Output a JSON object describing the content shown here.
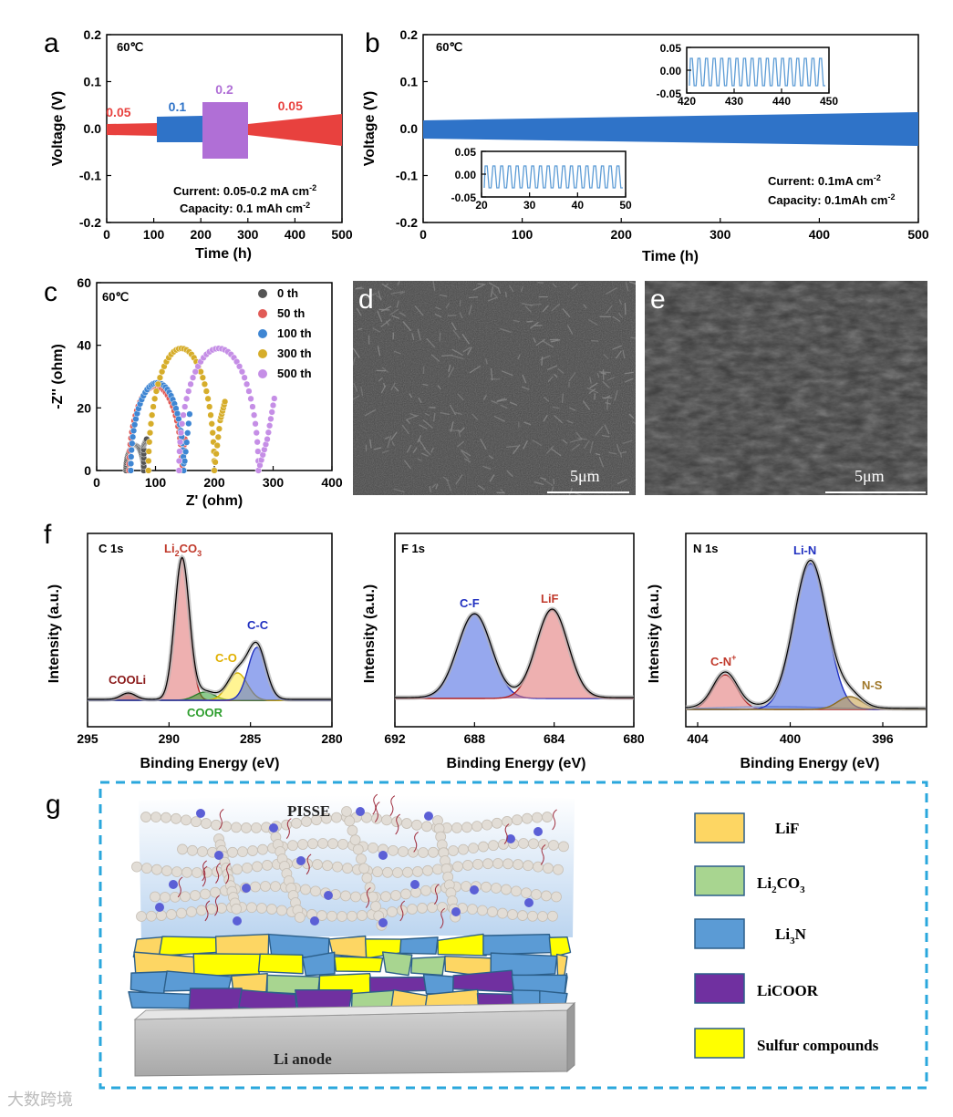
{
  "panels": {
    "a": {
      "letter": "a",
      "temp": "60℃",
      "ylabel": "Voltage (V)",
      "xlabel": "Time (h)",
      "xticks": [
        "0",
        "100",
        "200",
        "300",
        "400",
        "500"
      ],
      "yticks": [
        "0.2",
        "0.1",
        "0.0",
        "-0.1",
        "-0.2"
      ],
      "rate_labels": [
        {
          "text": "0.05",
          "color": "#e8413e",
          "t": 25
        },
        {
          "text": "0.1",
          "color": "#2f73c8",
          "t": 150
        },
        {
          "text": "0.2",
          "color": "#b06fd6",
          "t": 250
        },
        {
          "text": "0.05",
          "color": "#e8413e",
          "t": 390
        }
      ],
      "current": "Current: 0.05-0.2 mA cm",
      "current_sup": "-2",
      "capacity": "Capacity: 0.1 mAh cm",
      "capacity_sup": "-2"
    },
    "b": {
      "letter": "b",
      "temp": "60℃",
      "ylabel": "Voltage (V)",
      "xlabel": "Time (h)",
      "xticks": [
        "0",
        "100",
        "200",
        "300",
        "400",
        "500"
      ],
      "yticks": [
        "0.2",
        "0.1",
        "0.0",
        "-0.1",
        "-0.2"
      ],
      "inset1": {
        "xticks": [
          "420",
          "430",
          "440",
          "450"
        ],
        "yticks": [
          "0.05",
          "0.00",
          "-0.05"
        ]
      },
      "inset2": {
        "xticks": [
          "20",
          "30",
          "40",
          "50"
        ],
        "yticks": [
          "0.05",
          "0.00",
          "-0.05"
        ]
      },
      "current": "Current: 0.1mA cm",
      "current_sup": "-2",
      "capacity": "Capacity: 0.1mAh cm",
      "capacity_sup": "-2"
    },
    "c": {
      "letter": "c",
      "temp": "60℃",
      "ylabel": "-Z'' (ohm)",
      "xlabel": "Z' (ohm)",
      "xticks": [
        "0",
        "100",
        "200",
        "300",
        "400"
      ],
      "yticks": [
        "60",
        "40",
        "20",
        "0"
      ],
      "legend": [
        {
          "label": "0 th",
          "color": "#555555"
        },
        {
          "label": "50 th",
          "color": "#e15b57"
        },
        {
          "label": "100 th",
          "color": "#3f86d3"
        },
        {
          "label": "300 th",
          "color": "#d6ad2a"
        },
        {
          "label": "500 th",
          "color": "#c58ee6"
        }
      ]
    },
    "d": {
      "letter": "d",
      "scale": "5μm"
    },
    "e": {
      "letter": "e",
      "scale": "5μm"
    },
    "f": {
      "letter": "f",
      "ylabel": "Intensity (a.u.)",
      "xlabel": "Binding Energy (eV)",
      "c1s": {
        "title": "C 1s",
        "xticks": [
          "295",
          "290",
          "285",
          "280"
        ],
        "peaks": {
          "li2co3": "Li",
          "li2co3_sub": "2",
          "li2co3_mid": "CO",
          "li2co3_sub2": "3",
          "cooli": "COOLi",
          "coor": "COOR",
          "co": "C-O",
          "cc": "C-C"
        }
      },
      "f1s": {
        "title": "F 1s",
        "xticks": [
          "692",
          "688",
          "684",
          "680"
        ],
        "peaks": {
          "cf": "C-F",
          "lif": "LiF"
        }
      },
      "n1s": {
        "title": "N 1s",
        "xticks": [
          "404",
          "400",
          "396"
        ],
        "peaks": {
          "cn": "C-N",
          "cn_sup": "+",
          "lin": "Li-N",
          "ns": "N-S"
        }
      }
    },
    "g": {
      "letter": "g",
      "pisse": "PISSE",
      "anode": "Li anode",
      "legend": [
        {
          "key": "lif",
          "text": "LiF",
          "color": "#fdd663"
        },
        {
          "key": "li2co3",
          "text": "Li",
          "sub": "2",
          "rest": "CO",
          "sub2": "3",
          "color": "#a8d590"
        },
        {
          "key": "li3n",
          "text": "Li",
          "sub": "3",
          "rest": "N",
          "color": "#5b9bd5"
        },
        {
          "key": "licoor",
          "text": "LiCOOR",
          "color": "#7030a0"
        },
        {
          "key": "sulfur",
          "text": "Sulfur compounds",
          "color": "#ffff00"
        }
      ]
    }
  },
  "watermark": "大数跨境"
}
